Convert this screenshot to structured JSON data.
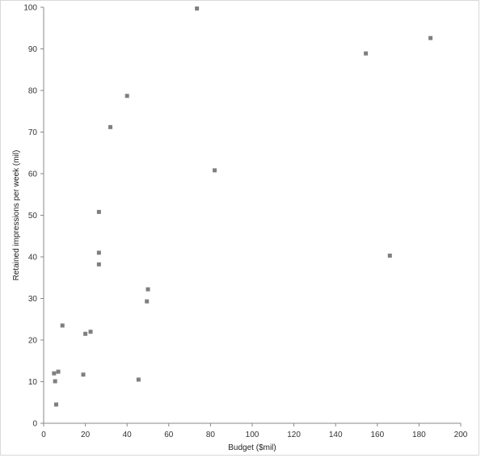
{
  "chart_data": {
    "type": "scatter",
    "title": "",
    "xlabel": "Budget ($mil)",
    "ylabel": "Retained impressions per week (mil)",
    "xlim": [
      0,
      200
    ],
    "ylim": [
      0,
      100
    ],
    "xticks": [
      0,
      20,
      40,
      60,
      80,
      100,
      120,
      140,
      160,
      180,
      200
    ],
    "yticks": [
      0,
      10,
      20,
      30,
      40,
      50,
      60,
      70,
      80,
      90,
      100
    ],
    "grid": false,
    "legend": "none",
    "marker_color": "#7f7f7f",
    "points": [
      {
        "x": 73.5,
        "y": 99.7
      },
      {
        "x": 185.5,
        "y": 92.6
      },
      {
        "x": 154.5,
        "y": 88.9
      },
      {
        "x": 40.0,
        "y": 78.7
      },
      {
        "x": 32.0,
        "y": 71.2
      },
      {
        "x": 82.0,
        "y": 60.8
      },
      {
        "x": 26.5,
        "y": 50.8
      },
      {
        "x": 26.5,
        "y": 41.0
      },
      {
        "x": 166.0,
        "y": 40.3
      },
      {
        "x": 26.5,
        "y": 38.2
      },
      {
        "x": 50.0,
        "y": 32.2
      },
      {
        "x": 49.5,
        "y": 29.3
      },
      {
        "x": 9.0,
        "y": 23.5
      },
      {
        "x": 22.5,
        "y": 22.0
      },
      {
        "x": 20.0,
        "y": 21.5
      },
      {
        "x": 7.0,
        "y": 12.4
      },
      {
        "x": 5.0,
        "y": 12.0
      },
      {
        "x": 19.0,
        "y": 11.7
      },
      {
        "x": 45.5,
        "y": 10.5
      },
      {
        "x": 5.5,
        "y": 10.1
      },
      {
        "x": 6.0,
        "y": 4.5
      }
    ]
  }
}
